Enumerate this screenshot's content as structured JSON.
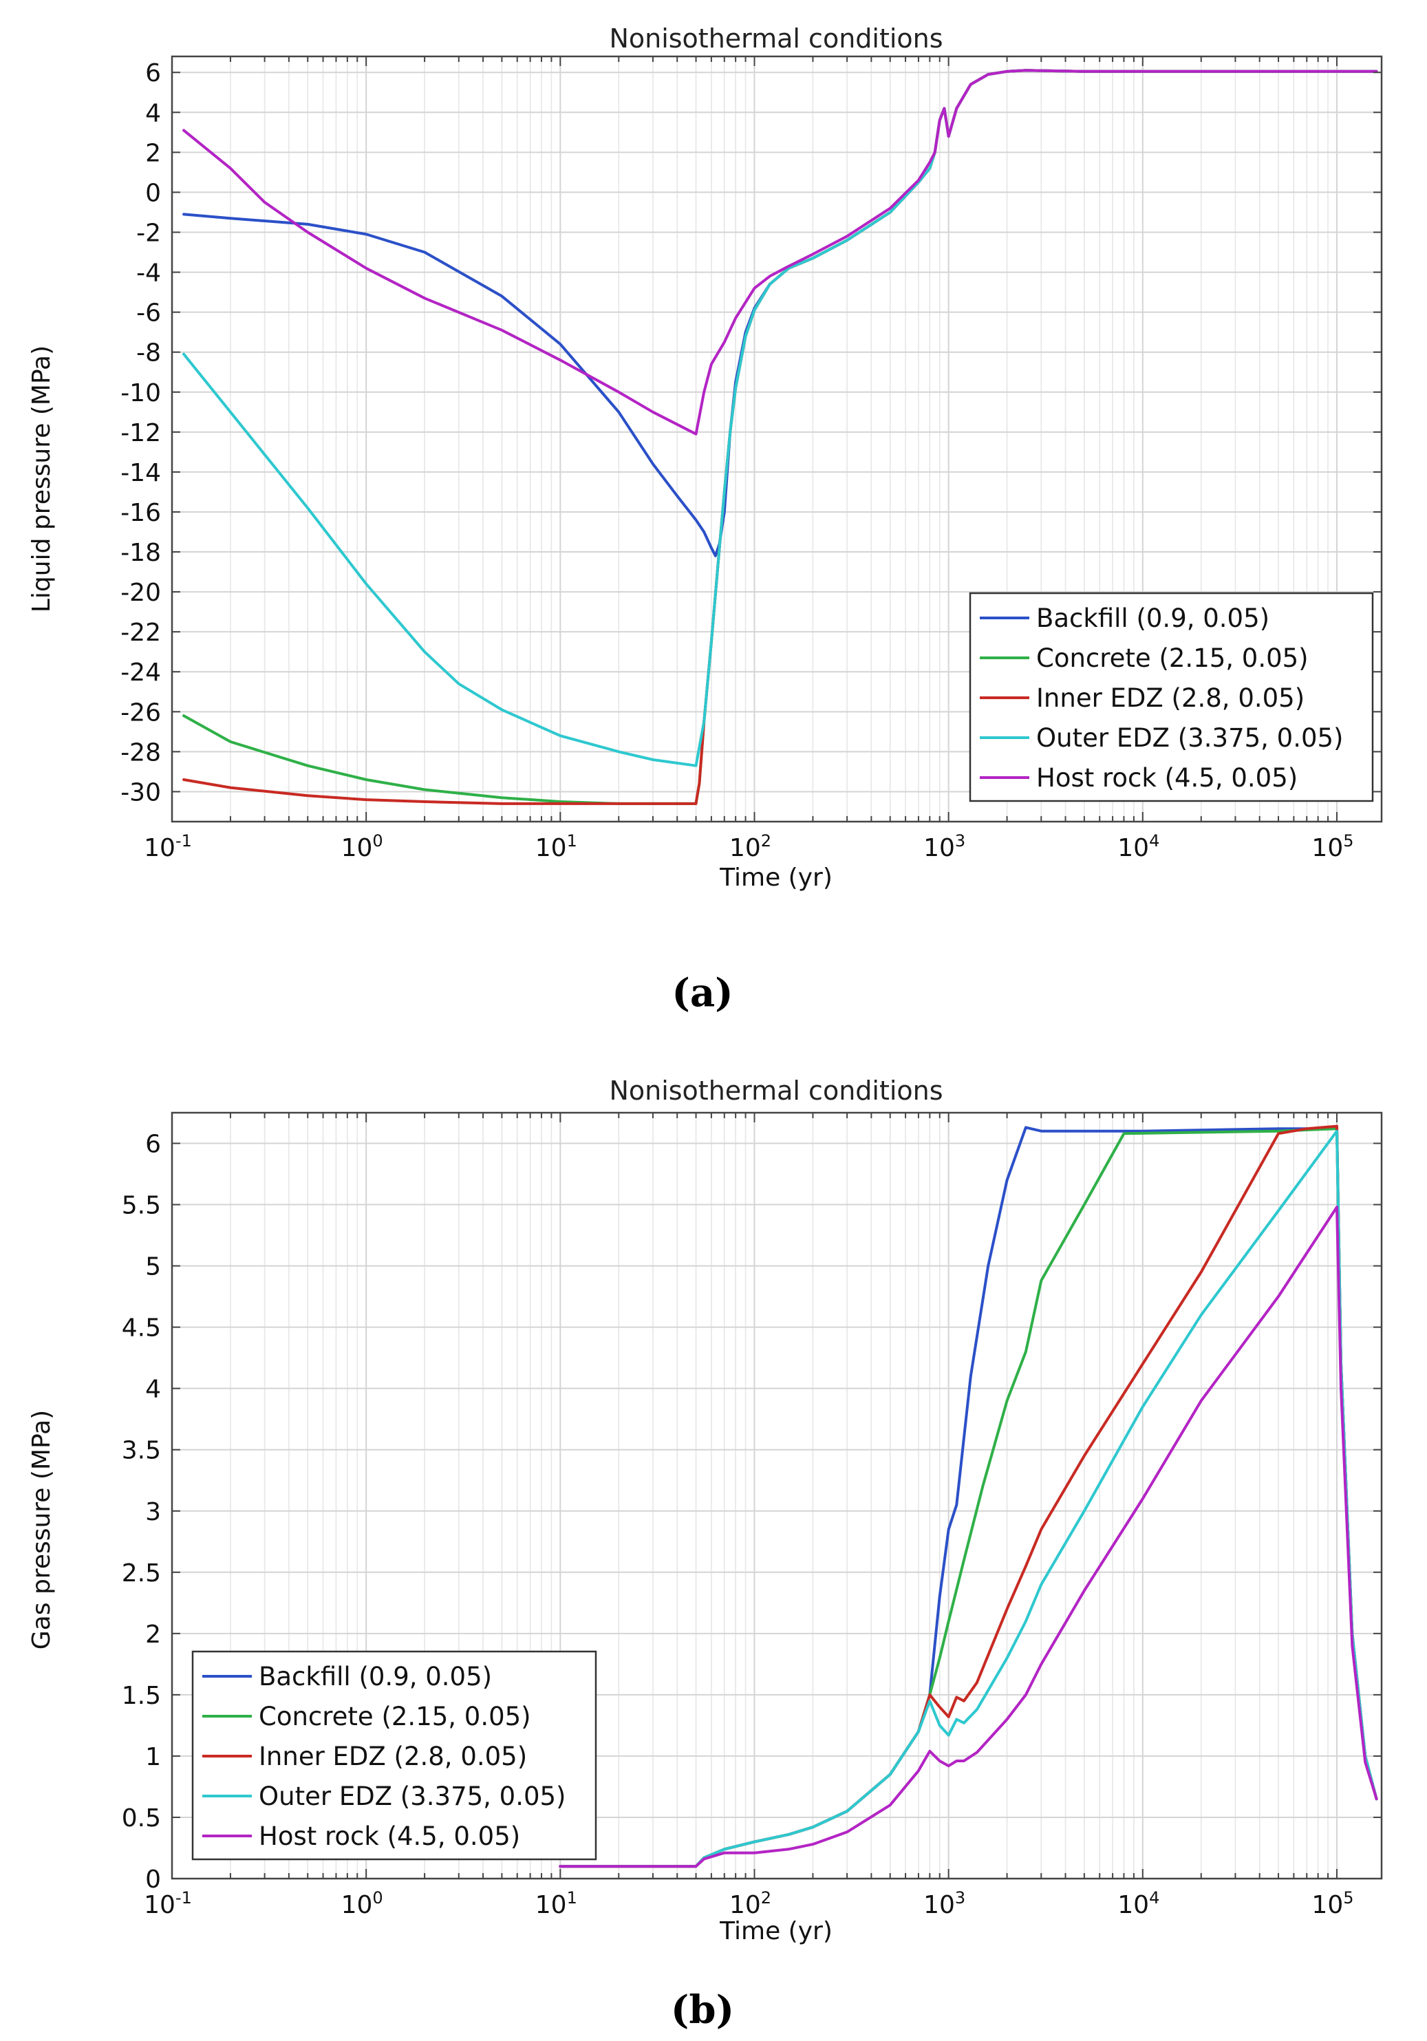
{
  "colors": {
    "backfill": "#2b50c8",
    "concrete": "#2fb048",
    "inner_edz": "#c82a23",
    "outer_edz": "#2ec8cf",
    "host_rock": "#b324c4"
  },
  "chart_data": [
    {
      "id": "a",
      "panel_label": "(a)",
      "type": "line",
      "title": "Nonisothermal conditions",
      "xlabel": "Time (yr)",
      "ylabel": "Liquid pressure (MPa)",
      "xscale": "log",
      "xlim": [
        0.1,
        170000
      ],
      "ylim": [
        -31.5,
        6.8
      ],
      "x_ticks": [
        {
          "base": "10",
          "exp": "-1",
          "value": 0.1
        },
        {
          "base": "10",
          "exp": "0",
          "value": 1
        },
        {
          "base": "10",
          "exp": "1",
          "value": 10
        },
        {
          "base": "10",
          "exp": "2",
          "value": 100
        },
        {
          "base": "10",
          "exp": "3",
          "value": 1000
        },
        {
          "base": "10",
          "exp": "4",
          "value": 10000
        },
        {
          "base": "10",
          "exp": "5",
          "value": 100000
        }
      ],
      "y_ticks": [
        {
          "value": 6,
          "label": "6"
        },
        {
          "value": 4,
          "label": "4"
        },
        {
          "value": 2,
          "label": "2"
        },
        {
          "value": 0,
          "label": "0"
        },
        {
          "value": -2,
          "label": "-2"
        },
        {
          "value": -4,
          "label": "-4"
        },
        {
          "value": -6,
          "label": "-6"
        },
        {
          "value": -8,
          "label": "-8"
        },
        {
          "value": -10,
          "label": "-10"
        },
        {
          "value": -12,
          "label": "-12"
        },
        {
          "value": -14,
          "label": "-14"
        },
        {
          "value": -16,
          "label": "-16"
        },
        {
          "value": -18,
          "label": "-18"
        },
        {
          "value": -20,
          "label": "-20"
        },
        {
          "value": -22,
          "label": "-22"
        },
        {
          "value": -24,
          "label": "-24"
        },
        {
          "value": -26,
          "label": "-26"
        },
        {
          "value": -28,
          "label": "-28"
        },
        {
          "value": -30,
          "label": "-30"
        }
      ],
      "legend_position": "lower-right",
      "series": [
        {
          "name": "Backfill (0.9, 0.05)",
          "color_key": "backfill",
          "x": [
            0.115,
            0.2,
            0.5,
            1,
            2,
            5,
            10,
            20,
            30,
            40,
            50,
            55,
            60,
            63,
            66,
            70,
            75,
            80,
            90,
            100,
            120,
            150,
            200,
            300,
            500,
            700,
            800,
            850,
            900,
            950,
            1000,
            1100,
            1300,
            1600,
            2000,
            2500,
            5000,
            20000,
            100000,
            160000
          ],
          "y": [
            -1.1,
            -1.3,
            -1.6,
            -2.1,
            -3.0,
            -5.2,
            -7.6,
            -11.0,
            -13.6,
            -15.2,
            -16.4,
            -17.0,
            -17.8,
            -18.2,
            -17.6,
            -16.0,
            -12.0,
            -9.5,
            -7.0,
            -5.8,
            -4.6,
            -3.8,
            -3.3,
            -2.4,
            -1.0,
            0.5,
            1.2,
            2.0,
            3.6,
            4.2,
            2.8,
            4.2,
            5.4,
            5.9,
            6.05,
            6.1,
            6.05,
            6.05,
            6.05,
            6.05
          ]
        },
        {
          "name": "Concrete (2.15, 0.05)",
          "color_key": "concrete",
          "x": [
            0.115,
            0.2,
            0.5,
            1,
            2,
            5,
            10,
            20,
            50,
            52,
            55,
            60,
            66,
            70,
            75,
            80,
            90,
            100,
            120,
            150,
            200,
            300,
            500,
            700,
            800,
            850,
            900,
            950,
            1000,
            1100,
            1300,
            1600,
            2000,
            2500,
            5000,
            20000,
            100000,
            160000
          ],
          "y": [
            -26.2,
            -27.5,
            -28.7,
            -29.4,
            -29.9,
            -30.3,
            -30.5,
            -30.6,
            -30.6,
            -29.6,
            -26.5,
            -22.5,
            -17.8,
            -15.0,
            -12.0,
            -9.8,
            -7.2,
            -5.9,
            -4.6,
            -3.8,
            -3.3,
            -2.4,
            -1.0,
            0.5,
            1.2,
            2.0,
            3.6,
            4.2,
            2.8,
            4.2,
            5.4,
            5.9,
            6.05,
            6.1,
            6.05,
            6.05,
            6.05,
            6.05
          ]
        },
        {
          "name": "Inner EDZ (2.8, 0.05)",
          "color_key": "inner_edz",
          "x": [
            0.115,
            0.2,
            0.5,
            1,
            2,
            5,
            10,
            20,
            50,
            50.5,
            52,
            55,
            60,
            66,
            70,
            75,
            80,
            90,
            100,
            120,
            150,
            200,
            300,
            500,
            700,
            800,
            850,
            900,
            950,
            1000,
            1100,
            1300,
            1600,
            2000,
            2500,
            5000,
            20000,
            100000,
            160000
          ],
          "y": [
            -29.4,
            -29.8,
            -30.2,
            -30.4,
            -30.5,
            -30.6,
            -30.6,
            -30.6,
            -30.6,
            -30.3,
            -29.6,
            -26.5,
            -22.5,
            -17.8,
            -15.0,
            -12.0,
            -9.8,
            -7.2,
            -5.9,
            -4.6,
            -3.8,
            -3.3,
            -2.4,
            -1.0,
            0.5,
            1.2,
            2.0,
            3.6,
            4.2,
            2.8,
            4.2,
            5.4,
            5.9,
            6.05,
            6.1,
            6.05,
            6.05,
            6.05,
            6.05
          ]
        },
        {
          "name": "Outer EDZ (3.375, 0.05)",
          "color_key": "outer_edz",
          "x": [
            0.115,
            0.2,
            0.5,
            1,
            2,
            3,
            5,
            10,
            20,
            30,
            50,
            55,
            60,
            66,
            70,
            75,
            80,
            90,
            100,
            120,
            150,
            200,
            300,
            500,
            700,
            800,
            850,
            900,
            950,
            1000,
            1100,
            1300,
            1600,
            2000,
            2500,
            5000,
            20000,
            100000,
            160000
          ],
          "y": [
            -8.1,
            -11.0,
            -15.8,
            -19.6,
            -23.0,
            -24.6,
            -25.9,
            -27.2,
            -28.0,
            -28.4,
            -28.7,
            -26.5,
            -22.5,
            -17.8,
            -15.0,
            -12.0,
            -9.8,
            -7.2,
            -5.9,
            -4.6,
            -3.8,
            -3.3,
            -2.4,
            -1.0,
            0.5,
            1.2,
            2.0,
            3.6,
            4.2,
            2.8,
            4.2,
            5.4,
            5.9,
            6.05,
            6.1,
            6.05,
            6.05,
            6.05,
            6.05
          ]
        },
        {
          "name": "Host rock (4.5, 0.05)",
          "color_key": "host_rock",
          "x": [
            0.115,
            0.2,
            0.3,
            0.5,
            1,
            2,
            5,
            10,
            20,
            30,
            50,
            55,
            60,
            70,
            80,
            100,
            120,
            150,
            200,
            300,
            500,
            700,
            800,
            850,
            900,
            950,
            1000,
            1100,
            1300,
            1600,
            2000,
            2500,
            5000,
            20000,
            100000,
            160000
          ],
          "y": [
            3.1,
            1.2,
            -0.5,
            -2.0,
            -3.8,
            -5.3,
            -6.9,
            -8.4,
            -10.0,
            -11.0,
            -12.1,
            -10.0,
            -8.6,
            -7.5,
            -6.3,
            -4.8,
            -4.2,
            -3.7,
            -3.1,
            -2.2,
            -0.8,
            0.6,
            1.5,
            2.0,
            3.6,
            4.2,
            2.8,
            4.2,
            5.4,
            5.9,
            6.05,
            6.1,
            6.05,
            6.05,
            6.05,
            6.05
          ]
        }
      ]
    },
    {
      "id": "b",
      "panel_label": "(b)",
      "type": "line",
      "title": "Nonisothermal conditions",
      "xlabel": "Time (yr)",
      "ylabel": "Gas pressure (MPa)",
      "xscale": "log",
      "xlim": [
        0.1,
        170000
      ],
      "ylim": [
        0,
        6.25
      ],
      "x_ticks": [
        {
          "base": "10",
          "exp": "-1",
          "value": 0.1
        },
        {
          "base": "10",
          "exp": "0",
          "value": 1
        },
        {
          "base": "10",
          "exp": "1",
          "value": 10
        },
        {
          "base": "10",
          "exp": "2",
          "value": 100
        },
        {
          "base": "10",
          "exp": "3",
          "value": 1000
        },
        {
          "base": "10",
          "exp": "4",
          "value": 10000
        },
        {
          "base": "10",
          "exp": "5",
          "value": 100000
        }
      ],
      "y_ticks": [
        {
          "value": 6,
          "label": "6"
        },
        {
          "value": 5.5,
          "label": "5.5"
        },
        {
          "value": 5,
          "label": "5"
        },
        {
          "value": 4.5,
          "label": "4.5"
        },
        {
          "value": 4,
          "label": "4"
        },
        {
          "value": 3.5,
          "label": "3.5"
        },
        {
          "value": 3,
          "label": "3"
        },
        {
          "value": 2.5,
          "label": "2.5"
        },
        {
          "value": 2,
          "label": "2"
        },
        {
          "value": 1.5,
          "label": "1.5"
        },
        {
          "value": 1,
          "label": "1"
        },
        {
          "value": 0.5,
          "label": "0.5"
        },
        {
          "value": 0,
          "label": "0"
        }
      ],
      "legend_position": "lower-left",
      "series": [
        {
          "name": "Backfill (0.9, 0.05)",
          "color_key": "backfill",
          "x": [
            10,
            50,
            55,
            70,
            100,
            150,
            200,
            300,
            500,
            700,
            800,
            900,
            1000,
            1100,
            1300,
            1600,
            2000,
            2500,
            3000,
            10000,
            50000,
            100000,
            105000,
            120000,
            140000,
            160000
          ],
          "y": [
            0.1,
            0.1,
            0.17,
            0.24,
            0.3,
            0.36,
            0.42,
            0.55,
            0.85,
            1.2,
            1.5,
            2.3,
            2.85,
            3.05,
            4.1,
            5.0,
            5.7,
            6.13,
            6.1,
            6.1,
            6.12,
            6.12,
            4.2,
            2.0,
            1.0,
            0.65
          ]
        },
        {
          "name": "Concrete (2.15, 0.05)",
          "color_key": "concrete",
          "x": [
            10,
            50,
            55,
            70,
            100,
            150,
            200,
            300,
            500,
            700,
            800,
            900,
            1000,
            1200,
            1500,
            2000,
            2500,
            3000,
            5000,
            8000,
            20000,
            50000,
            100000,
            105000,
            120000,
            140000,
            160000
          ],
          "y": [
            0.1,
            0.1,
            0.17,
            0.24,
            0.3,
            0.36,
            0.42,
            0.55,
            0.85,
            1.2,
            1.5,
            1.8,
            2.1,
            2.6,
            3.2,
            3.9,
            4.3,
            4.88,
            5.5,
            6.08,
            6.09,
            6.1,
            6.12,
            4.2,
            2.0,
            1.0,
            0.65
          ]
        },
        {
          "name": "Inner EDZ (2.8, 0.05)",
          "color_key": "inner_edz",
          "x": [
            10,
            50,
            55,
            70,
            100,
            150,
            200,
            300,
            500,
            700,
            800,
            900,
            1000,
            1100,
            1200,
            1400,
            2000,
            2500,
            3000,
            5000,
            10000,
            20000,
            50000,
            70000,
            100000,
            105000,
            120000,
            140000,
            160000
          ],
          "y": [
            0.1,
            0.1,
            0.17,
            0.24,
            0.3,
            0.36,
            0.42,
            0.55,
            0.85,
            1.2,
            1.5,
            1.4,
            1.32,
            1.48,
            1.45,
            1.6,
            2.2,
            2.55,
            2.85,
            3.45,
            4.2,
            4.95,
            6.08,
            6.12,
            6.14,
            4.2,
            2.0,
            1.0,
            0.65
          ]
        },
        {
          "name": "Outer EDZ (3.375, 0.05)",
          "color_key": "outer_edz",
          "x": [
            10,
            50,
            55,
            70,
            100,
            150,
            200,
            300,
            500,
            700,
            800,
            900,
            1000,
            1100,
            1200,
            1400,
            2000,
            2500,
            3000,
            5000,
            10000,
            20000,
            50000,
            100000,
            105000,
            120000,
            140000,
            160000
          ],
          "y": [
            0.1,
            0.1,
            0.17,
            0.24,
            0.3,
            0.36,
            0.42,
            0.55,
            0.85,
            1.2,
            1.45,
            1.25,
            1.17,
            1.3,
            1.27,
            1.38,
            1.8,
            2.1,
            2.4,
            3.0,
            3.85,
            4.6,
            5.45,
            6.1,
            4.2,
            2.0,
            1.0,
            0.65
          ]
        },
        {
          "name": "Host rock (4.5, 0.05)",
          "color_key": "host_rock",
          "x": [
            10,
            50,
            55,
            70,
            100,
            150,
            200,
            300,
            500,
            700,
            800,
            900,
            1000,
            1100,
            1200,
            1400,
            2000,
            2500,
            3000,
            5000,
            10000,
            20000,
            50000,
            100000,
            105000,
            120000,
            140000,
            160000
          ],
          "y": [
            0.1,
            0.1,
            0.16,
            0.21,
            0.21,
            0.24,
            0.28,
            0.38,
            0.6,
            0.88,
            1.04,
            0.96,
            0.92,
            0.96,
            0.96,
            1.03,
            1.3,
            1.5,
            1.75,
            2.35,
            3.1,
            3.9,
            4.75,
            5.48,
            4.0,
            1.9,
            0.95,
            0.65
          ]
        }
      ]
    }
  ]
}
